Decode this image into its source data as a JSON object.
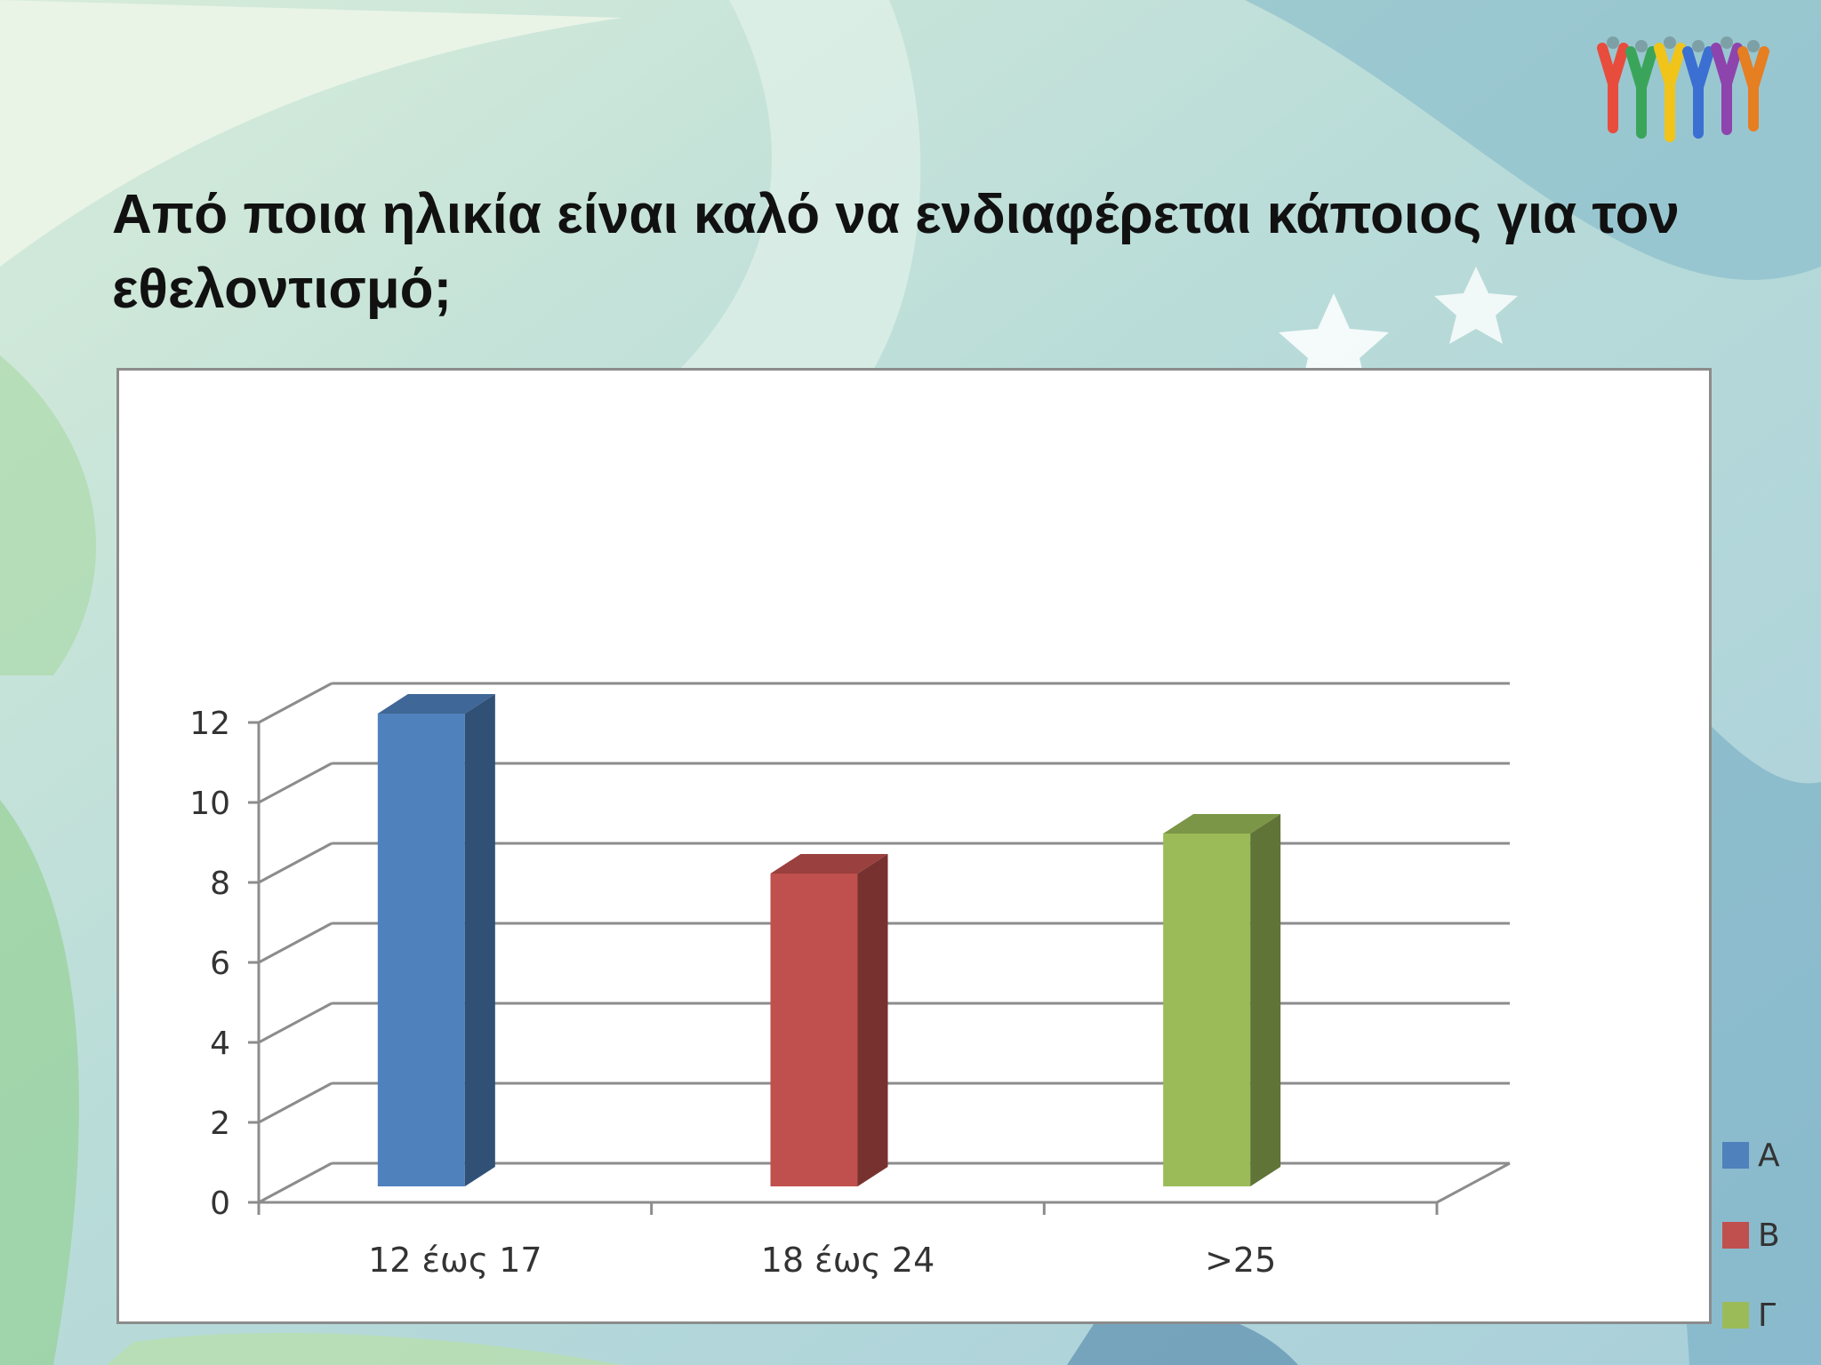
{
  "slide": {
    "title": "Από ποια ηλικία είναι καλό να ενδιαφέρεται κάποιος για τον εθελοντισμό;"
  },
  "logo": {
    "icon": "people-raising-hands-icon"
  },
  "colors": {
    "A": "#4f81bd",
    "B": "#c0504d",
    "C": "#9bbb59",
    "gridline": "#8c8c8c"
  },
  "chart_data": {
    "type": "bar",
    "style": "3d-clustered-column",
    "categories": [
      "12 έως 17",
      "18 έως 24",
      ">25"
    ],
    "series": [
      {
        "name": "Α",
        "values": [
          12,
          null,
          null
        ]
      },
      {
        "name": "Β",
        "values": [
          null,
          8,
          null
        ]
      },
      {
        "name": "Γ",
        "values": [
          null,
          null,
          9
        ]
      }
    ],
    "ylim": [
      0,
      12
    ],
    "yticks": [
      0,
      2,
      4,
      6,
      8,
      10,
      12
    ],
    "grid": true,
    "legend_position": "right"
  }
}
